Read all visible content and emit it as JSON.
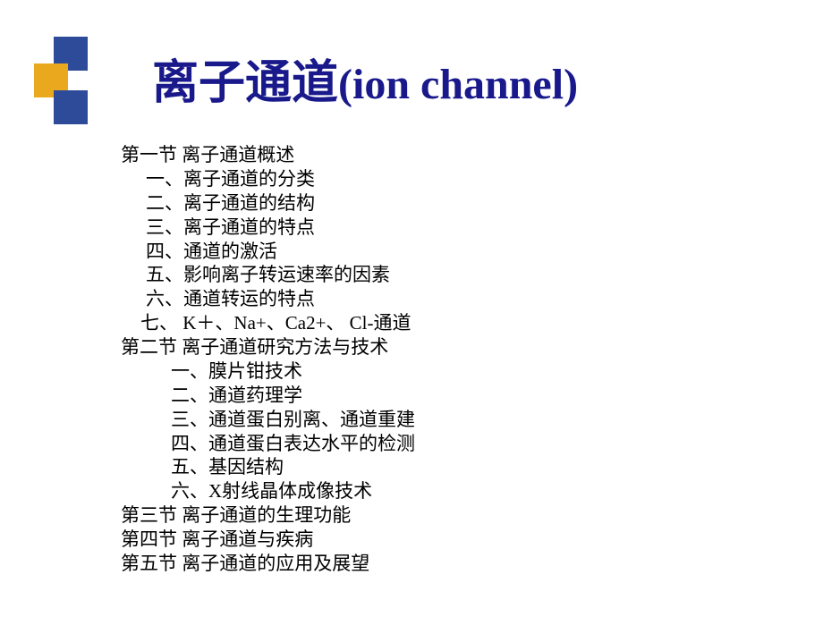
{
  "colors": {
    "title": "#19198c",
    "text": "#000000",
    "square_blue": "#2e4b9a",
    "square_gold": "#eaa81f",
    "background": "#ffffff"
  },
  "title": {
    "zh": "离子通道",
    "en": "(ion channel)"
  },
  "outline": [
    {
      "cls": "lvl1",
      "text": "第一节  离子通道概述"
    },
    {
      "cls": "lvl2",
      "text": "一、离子通道的分类"
    },
    {
      "cls": "lvl2",
      "text": "二、离子通道的结构"
    },
    {
      "cls": "lvl2",
      "text": "三、离子通道的特点"
    },
    {
      "cls": "lvl2",
      "text": "四、通道的激活"
    },
    {
      "cls": "lvl2",
      "text": "五、影响离子转运速率的因素"
    },
    {
      "cls": "lvl2",
      "text": "六、通道转运的特点"
    },
    {
      "cls": "lvl2b",
      "text": "七、 K＋、Na+、Ca2+、 Cl-通道"
    },
    {
      "cls": "lvl1",
      "text": "第二节  离子通道研究方法与技术"
    },
    {
      "cls": "lvl3",
      "text": "一、膜片钳技术"
    },
    {
      "cls": "lvl3",
      "text": "二、通道药理学"
    },
    {
      "cls": "lvl3",
      "text": "三、通道蛋白别离、通道重建"
    },
    {
      "cls": "lvl3",
      "text": "四、通道蛋白表达水平的检测"
    },
    {
      "cls": "lvl3",
      "text": "五、基因结构"
    },
    {
      "cls": "lvl3",
      "text": "六、X射线晶体成像技术"
    },
    {
      "cls": "lvl1",
      "text": "第三节  离子通道的生理功能"
    },
    {
      "cls": "lvl1",
      "text": "第四节  离子通道与疾病"
    },
    {
      "cls": "lvl1",
      "text": "第五节  离子通道的应用及展望"
    }
  ]
}
